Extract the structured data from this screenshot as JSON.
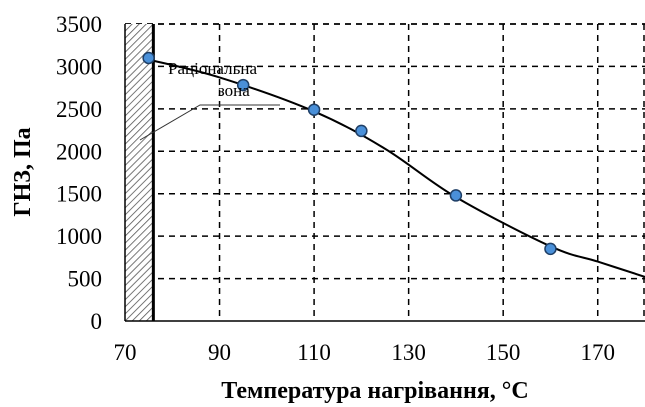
{
  "chart_data": {
    "type": "scatter",
    "xlabel": "Температура нагрівання, °С",
    "ylabel": "ГНЗ, Па",
    "xlim": [
      70,
      180
    ],
    "ylim": [
      0,
      3500
    ],
    "x_ticks": [
      "70",
      "90",
      "110",
      "130",
      "150",
      "170"
    ],
    "y_ticks": [
      "0",
      "500",
      "1000",
      "1500",
      "2000",
      "2500",
      "3000",
      "3500"
    ],
    "grid": true,
    "grid_style": "dashed",
    "series": [
      {
        "points": [
          {
            "x": 75,
            "y": 3100
          },
          {
            "x": 95,
            "y": 2780
          },
          {
            "x": 110,
            "y": 2490
          },
          {
            "x": 120,
            "y": 2240
          },
          {
            "x": 140,
            "y": 1480
          },
          {
            "x": 160,
            "y": 850
          }
        ],
        "trend": [
          {
            "x": 75,
            "y": 3080
          },
          {
            "x": 90,
            "y": 2870
          },
          {
            "x": 110,
            "y": 2470
          },
          {
            "x": 125,
            "y": 2030
          },
          {
            "x": 140,
            "y": 1460
          },
          {
            "x": 160,
            "y": 880
          },
          {
            "x": 170,
            "y": 700
          },
          {
            "x": 180,
            "y": 520
          }
        ]
      }
    ],
    "annotation": {
      "line1": "Раціональна",
      "line2": "зона",
      "zone_x": [
        70,
        76
      ]
    },
    "colors": {
      "marker_fill": "#4a90d9",
      "marker_stroke": "#1f3f66",
      "line": "#000000",
      "grid": "#000000"
    }
  }
}
